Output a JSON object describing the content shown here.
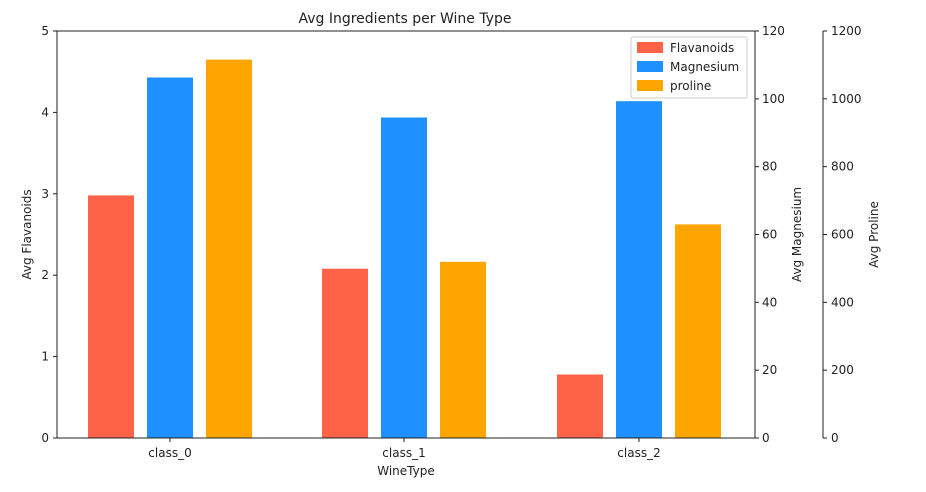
{
  "chart_data": {
    "type": "bar",
    "title": "Avg Ingredients per Wine Type",
    "xlabel": "WineType",
    "categories": [
      "class_0",
      "class_1",
      "class_2"
    ],
    "series": [
      {
        "name": "Flavanoids",
        "axis": "left",
        "color": "#ff6347",
        "values": [
          2.98,
          2.08,
          0.78
        ]
      },
      {
        "name": "Magnesium",
        "axis": "right1",
        "color": "#1e90ff",
        "values": [
          106.3,
          94.5,
          99.3
        ]
      },
      {
        "name": "proline",
        "axis": "right2",
        "color": "#ffa500",
        "values": [
          1115.7,
          519.5,
          629.9
        ]
      }
    ],
    "axes": {
      "left": {
        "label": "Avg Flavanoids",
        "ylim": [
          0,
          5
        ],
        "ticks": [
          0,
          1,
          2,
          3,
          4,
          5
        ]
      },
      "right1": {
        "label": "Avg Magnesium",
        "ylim": [
          0,
          120
        ],
        "ticks": [
          0,
          20,
          40,
          60,
          80,
          100,
          120
        ]
      },
      "right2": {
        "label": "Avg Proline",
        "ylim": [
          0,
          1200
        ],
        "ticks": [
          0,
          200,
          400,
          600,
          800,
          1000,
          1200
        ]
      }
    },
    "legend": {
      "placement": "top-right",
      "entries": [
        {
          "label": "Flavanoids",
          "color": "#ff6347"
        },
        {
          "label": "Magnesium",
          "color": "#1e90ff"
        },
        {
          "label": "proline",
          "color": "#ffa500"
        }
      ]
    },
    "grid": false
  }
}
